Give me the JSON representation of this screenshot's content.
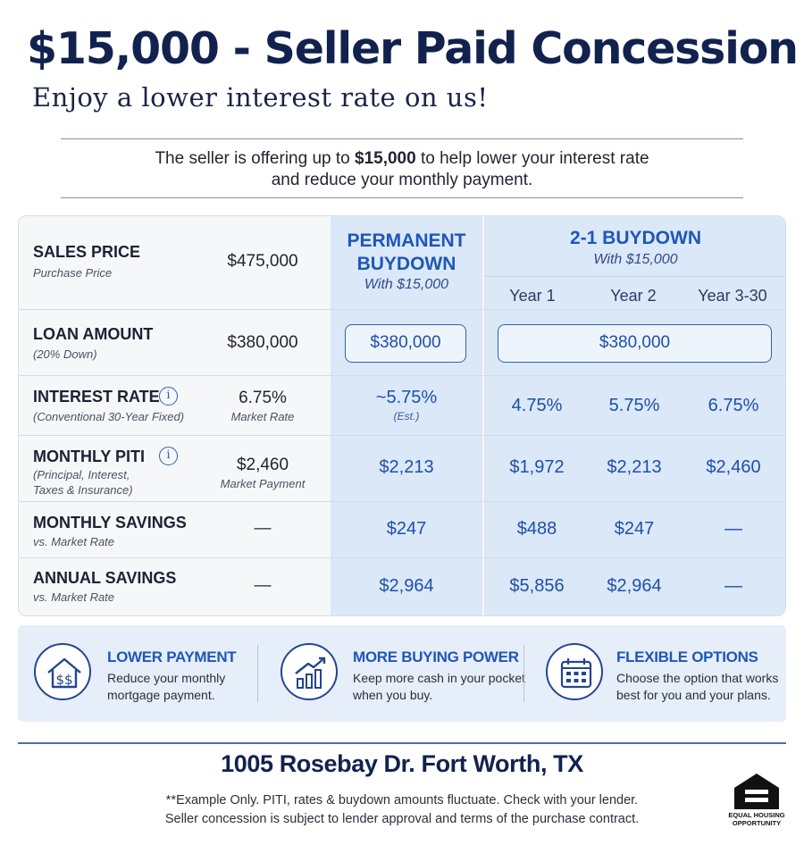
{
  "header": {
    "title": "$15,000 - Seller Paid Concession",
    "subtitle": "Enjoy a lower interest rate on us!"
  },
  "intro": {
    "before": "The seller is offering up to ",
    "amount": "$15,000",
    "after": " to help lower your interest rate",
    "line2": "and reduce your monthly payment."
  },
  "table": {
    "permanent": {
      "title_line1": "PERMANENT",
      "title_line2": "BUYDOWN",
      "with": "With $15,000"
    },
    "buydown": {
      "title": "2-1 BUYDOWN",
      "with": "With $15,000",
      "years": [
        "Year 1",
        "Year 2",
        "Year 3-30"
      ]
    },
    "rows": {
      "sales_price": {
        "label": "SALES PRICE",
        "sub": "Purchase Price",
        "market": "$475,000"
      },
      "loan_amount": {
        "label": "LOAN AMOUNT",
        "sub": "(20% Down)",
        "market": "$380,000",
        "permanent": "$380,000",
        "buydown": "$380,000"
      },
      "interest_rate": {
        "label": "INTEREST RATE",
        "sub": "(Conventional 30-Year Fixed)",
        "market": "6.75%",
        "market_sub": "Market Rate",
        "permanent": "~5.75%",
        "permanent_sub": "(Est.)",
        "year1": "4.75%",
        "year2": "5.75%",
        "year3": "6.75%"
      },
      "monthly_piti": {
        "label": "MONTHLY PITI",
        "sub1": "(Principal, Interest,",
        "sub2": "Taxes & Insurance)",
        "market": "$2,460",
        "market_sub": "Market Payment",
        "permanent": "$2,213",
        "year1": "$1,972",
        "year2": "$2,213",
        "year3": "$2,460"
      },
      "monthly_savings": {
        "label": "MONTHLY SAVINGS",
        "sub": "vs. Market Rate",
        "market": "—",
        "permanent": "$247",
        "year1": "$488",
        "year2": "$247",
        "year3": "—"
      },
      "annual_savings": {
        "label": "ANNUAL SAVINGS",
        "sub": "vs. Market Rate",
        "market": "—",
        "permanent": "$2,964",
        "year1": "$5,856",
        "year2": "$2,964",
        "year3": "—"
      }
    },
    "info_icon": "i"
  },
  "benefits": [
    {
      "icon": "house-dollar-icon",
      "title": "LOWER PAYMENT",
      "line1": "Reduce your monthly",
      "line2": "mortgage payment."
    },
    {
      "icon": "growth-chart-icon",
      "title": "MORE BUYING POWER",
      "line1": "Keep more cash in your pocket",
      "line2": "when you buy."
    },
    {
      "icon": "calendar-icon",
      "title": "FLEXIBLE OPTIONS",
      "line1": "Choose the option that works",
      "line2": "best for you and your plans."
    }
  ],
  "footer": {
    "address": "1005 Rosebay Dr. Fort Worth, TX",
    "disclaimer1": "**Example Only. PITI, rates & buydown amounts fluctuate. Check with your lender.",
    "disclaimer2": "Seller concession is subject to lender approval and terms of the purchase contract.",
    "eho_line1": "EQUAL HOUSING",
    "eho_line2": "OPPORTUNITY"
  },
  "colors": {
    "navy": "#12224f",
    "accent_blue": "#1f56b8",
    "column_fill": "#dbe8f8",
    "benefit_band": "#e6eef9"
  }
}
